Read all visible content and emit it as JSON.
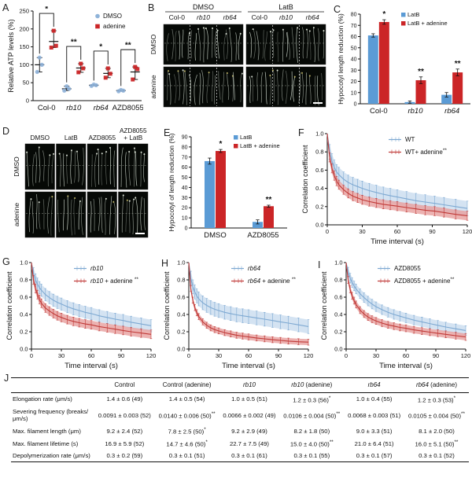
{
  "labels": {
    "A": "A",
    "B": "B",
    "C": "C",
    "D": "D",
    "E": "E",
    "F": "F",
    "G": "G",
    "H": "H",
    "I": "I",
    "J": "J"
  },
  "colors": {
    "blue_marker": "#8fb3d9",
    "blue_bar": "#5b9bd5",
    "red": "#cb2527",
    "blue_line": "#7ea9d2",
    "blue_band": "#c9dcef",
    "red_line": "#c03a38",
    "red_band": "#e79f9e",
    "axis": "#111111"
  },
  "micrographs": {
    "B": {
      "row_labels": [
        "DMSO",
        "adenine"
      ],
      "groups": [
        {
          "title": "DMSO",
          "cols": [
            {
              "t": "Col-0",
              "i": false
            },
            {
              "t": "rb10",
              "i": true
            },
            {
              "t": "rb64",
              "i": true
            }
          ]
        },
        {
          "title": "LatB",
          "cols": [
            {
              "t": "Col-0",
              "i": false
            },
            {
              "t": "rb10",
              "i": true
            },
            {
              "t": "rb64",
              "i": true
            }
          ]
        }
      ]
    },
    "D": {
      "row_labels": [
        "DMSO",
        "adenine"
      ],
      "cols": [
        "DMSO",
        "LatB",
        "AZD8055",
        "AZD8055\n+ LatB"
      ]
    }
  },
  "chart_data": {
    "A": {
      "type": "scatter",
      "ylabel": "Relative ATP levels (%)",
      "ylim": [
        0,
        250
      ],
      "yticks": [
        0,
        50,
        100,
        150,
        200,
        250
      ],
      "categories": [
        {
          "t": "Col-0",
          "i": false
        },
        {
          "t": "rb10",
          "i": true
        },
        {
          "t": "rb64",
          "i": true
        },
        {
          "t": "AZD8055",
          "i": false
        }
      ],
      "legend": [
        {
          "label": "DMSO",
          "marker": "circle",
          "color": "blue_marker"
        },
        {
          "label": "adenine",
          "marker": "square",
          "color": "red"
        }
      ],
      "series": [
        {
          "name": "DMSO",
          "color": "blue_marker",
          "marker": "circle",
          "points": [
            [
              80,
              100,
              120
            ],
            [
              28,
              33,
              40
            ],
            [
              41,
              43,
              45
            ],
            [
              26,
              28,
              30
            ]
          ],
          "mean": [
            100,
            33,
            43,
            28
          ]
        },
        {
          "name": "adenine",
          "color": "red",
          "marker": "square",
          "points": [
            [
              148,
              153,
              195
            ],
            [
              79,
              90,
              103
            ],
            [
              64,
              75,
              90
            ],
            [
              59,
              88,
              94
            ]
          ],
          "mean": [
            165,
            91,
            76,
            80
          ]
        }
      ],
      "sig": [
        "*",
        "**",
        "*",
        "**"
      ]
    },
    "C": {
      "type": "bar",
      "ylabel": "Hypocotyl length reduction (%)",
      "ylim": [
        0,
        80
      ],
      "ytick_step": 10,
      "legend_dx": 90,
      "categories": [
        {
          "t": "Col-0",
          "i": false
        },
        {
          "t": "rb10",
          "i": true
        },
        {
          "t": "rb64",
          "i": true
        }
      ],
      "legend": [
        {
          "label": "LatB",
          "color": "blue_bar"
        },
        {
          "label": "LatB + adenine",
          "color": "red"
        }
      ],
      "series": [
        {
          "name": "LatB",
          "color": "blue_bar",
          "values": [
            61,
            1.5,
            8
          ],
          "err": [
            1.5,
            1,
            2
          ]
        },
        {
          "name": "LatB + adenine",
          "color": "red",
          "values": [
            73,
            21,
            28
          ],
          "err": [
            2,
            3,
            3
          ]
        }
      ],
      "sig": [
        "*",
        "**",
        "**"
      ]
    },
    "E": {
      "type": "bar",
      "ylabel": "Hypocotyl of length reduction (%)",
      "ylim": [
        0,
        90
      ],
      "ytick_step": 10,
      "legend_dx": 70,
      "categories": [
        {
          "t": "DMSO",
          "i": false
        },
        {
          "t": "AZD8055",
          "i": false
        }
      ],
      "legend": [
        {
          "label": "LatB",
          "color": "blue_bar"
        },
        {
          "label": "LatB + adenine",
          "color": "red"
        }
      ],
      "series": [
        {
          "name": "LatB",
          "color": "blue_bar",
          "values": [
            66,
            6
          ],
          "err": [
            3,
            2
          ]
        },
        {
          "name": "LatB + adenine",
          "color": "red",
          "values": [
            76,
            21.5
          ],
          "err": [
            1.5,
            1
          ]
        }
      ],
      "sig": [
        "*",
        "**"
      ]
    },
    "F": {
      "type": "line",
      "xlabel": "Time interval (s)",
      "ylabel": "Correlation coefficient",
      "xlim": [
        0,
        120
      ],
      "xticks": [
        0,
        30,
        60,
        90,
        120
      ],
      "yticks": [
        0,
        0.2,
        0.4,
        0.6,
        0.8,
        1.0
      ],
      "legend_dx": 106,
      "x": [
        0,
        2,
        4,
        6,
        8,
        10,
        14,
        18,
        22,
        26,
        30,
        36,
        42,
        48,
        54,
        60,
        68,
        76,
        84,
        92,
        100,
        110,
        120
      ],
      "legend": [
        {
          "it": "",
          "rest": "WT",
          "sup": ""
        },
        {
          "it": "",
          "rest": "WT+ adenine",
          "sup": "**"
        }
      ],
      "series": [
        {
          "name": "WT",
          "line": "blue_line",
          "band": "blue_band",
          "err": 0.08,
          "y": [
            1.0,
            0.8,
            0.7,
            0.63,
            0.58,
            0.55,
            0.5,
            0.465,
            0.44,
            0.42,
            0.4,
            0.375,
            0.355,
            0.335,
            0.32,
            0.305,
            0.285,
            0.265,
            0.25,
            0.235,
            0.22,
            0.2,
            0.18
          ]
        },
        {
          "name": "WT+ adenine",
          "line": "red_line",
          "band": "red_band",
          "err": 0.05,
          "y": [
            1.0,
            0.74,
            0.62,
            0.54,
            0.48,
            0.44,
            0.385,
            0.345,
            0.315,
            0.295,
            0.275,
            0.255,
            0.24,
            0.225,
            0.215,
            0.205,
            0.19,
            0.175,
            0.16,
            0.15,
            0.135,
            0.115,
            0.1
          ]
        }
      ]
    },
    "G": {
      "type": "line",
      "xlabel": "Time interval (s)",
      "ylabel": "Correlation coefficient",
      "xlim": [
        0,
        120
      ],
      "xticks": [
        0,
        30,
        60,
        90,
        120
      ],
      "yticks": [
        0,
        0.2,
        0.4,
        0.6,
        0.8,
        1.0
      ],
      "legend_dx": 104,
      "x": [
        0,
        2,
        4,
        6,
        8,
        10,
        14,
        18,
        22,
        26,
        30,
        36,
        42,
        48,
        54,
        60,
        68,
        76,
        84,
        92,
        100,
        110,
        120
      ],
      "legend": [
        {
          "it": "rb10",
          "rest": "",
          "sup": ""
        },
        {
          "it": "rb10",
          "rest": " + adenine ",
          "sup": "**"
        }
      ],
      "series": [
        {
          "name": "rb10",
          "line": "blue_line",
          "band": "blue_band",
          "err": 0.07,
          "y": [
            1.0,
            0.87,
            0.8,
            0.75,
            0.71,
            0.68,
            0.63,
            0.595,
            0.565,
            0.54,
            0.52,
            0.49,
            0.465,
            0.445,
            0.425,
            0.41,
            0.385,
            0.365,
            0.345,
            0.33,
            0.31,
            0.29,
            0.27
          ]
        },
        {
          "name": "rb10 + adenine",
          "line": "red_line",
          "band": "red_band",
          "err": 0.05,
          "y": [
            1.0,
            0.8,
            0.7,
            0.63,
            0.575,
            0.53,
            0.475,
            0.44,
            0.41,
            0.385,
            0.365,
            0.34,
            0.32,
            0.305,
            0.29,
            0.28,
            0.26,
            0.245,
            0.23,
            0.215,
            0.2,
            0.185,
            0.17
          ]
        }
      ]
    },
    "H": {
      "type": "line",
      "xlabel": "Time interval (s)",
      "ylabel": "Correlation coefficient",
      "xlim": [
        0,
        120
      ],
      "xticks": [
        0,
        30,
        60,
        90,
        120
      ],
      "yticks": [
        0,
        0.2,
        0.4,
        0.6,
        0.8,
        1.0
      ],
      "legend_dx": 104,
      "x": [
        0,
        2,
        4,
        6,
        8,
        10,
        14,
        18,
        22,
        26,
        30,
        36,
        42,
        48,
        54,
        60,
        68,
        76,
        84,
        92,
        100,
        110,
        120
      ],
      "legend": [
        {
          "it": "rb64",
          "rest": "",
          "sup": ""
        },
        {
          "it": "rb64",
          "rest": " + adenine ",
          "sup": "**"
        }
      ],
      "series": [
        {
          "name": "rb64",
          "line": "blue_line",
          "band": "blue_band",
          "err": 0.08,
          "y": [
            1.0,
            0.82,
            0.72,
            0.66,
            0.615,
            0.58,
            0.535,
            0.505,
            0.48,
            0.46,
            0.445,
            0.425,
            0.41,
            0.395,
            0.385,
            0.375,
            0.36,
            0.345,
            0.33,
            0.315,
            0.3,
            0.28,
            0.26
          ]
        },
        {
          "name": "rb64 + adenine",
          "line": "red_line",
          "band": "red_band",
          "err": 0.035,
          "y": [
            1.0,
            0.7,
            0.565,
            0.48,
            0.42,
            0.375,
            0.315,
            0.275,
            0.245,
            0.225,
            0.21,
            0.19,
            0.175,
            0.16,
            0.15,
            0.14,
            0.128,
            0.118,
            0.108,
            0.1,
            0.092,
            0.085,
            0.08
          ]
        }
      ]
    },
    "I": {
      "type": "line",
      "xlabel": "Time interval (s)",
      "ylabel": "Correlation coefficient",
      "xlim": [
        0,
        120
      ],
      "xticks": [
        0,
        30,
        60,
        90,
        120
      ],
      "yticks": [
        0,
        0.2,
        0.4,
        0.6,
        0.8,
        1.0
      ],
      "legend_dx": 118,
      "x": [
        0,
        2,
        4,
        6,
        8,
        10,
        14,
        18,
        22,
        26,
        30,
        36,
        42,
        48,
        54,
        60,
        68,
        76,
        84,
        92,
        100,
        110,
        120
      ],
      "legend": [
        {
          "it": "",
          "rest": "AZD8055",
          "sup": ""
        },
        {
          "it": "",
          "rest": "AZD8055 + adenine",
          "sup": "**"
        }
      ],
      "series": [
        {
          "name": "AZD8055",
          "line": "blue_line",
          "band": "blue_band",
          "err": 0.055,
          "y": [
            1.0,
            0.89,
            0.82,
            0.77,
            0.73,
            0.695,
            0.64,
            0.595,
            0.555,
            0.52,
            0.49,
            0.455,
            0.425,
            0.4,
            0.38,
            0.36,
            0.335,
            0.315,
            0.295,
            0.275,
            0.255,
            0.235,
            0.215
          ]
        },
        {
          "name": "AZD8055 + adenine",
          "line": "red_line",
          "band": "red_band",
          "err": 0.04,
          "y": [
            1.0,
            0.8,
            0.69,
            0.615,
            0.56,
            0.515,
            0.45,
            0.405,
            0.37,
            0.345,
            0.325,
            0.3,
            0.28,
            0.265,
            0.25,
            0.24,
            0.222,
            0.208,
            0.195,
            0.183,
            0.17,
            0.155,
            0.14
          ]
        }
      ]
    },
    "J": {
      "type": "table",
      "columns": [
        {
          "it": "",
          "rest": "Control"
        },
        {
          "it": "",
          "rest": "Control (adenine)"
        },
        {
          "it": "rb10",
          "rest": ""
        },
        {
          "it": "rb10",
          "rest": " (adenine)"
        },
        {
          "it": "rb64",
          "rest": ""
        },
        {
          "it": "rb64",
          "rest": " (adenine)"
        }
      ],
      "rows": [
        {
          "label": "Elongation rate (μm/s)",
          "cells": [
            {
              "t": "1.4 ± 0.6 (49)",
              "sup": ""
            },
            {
              "t": "1.4 ± 0.5 (54)",
              "sup": ""
            },
            {
              "t": "1.0 ± 0.5 (51)",
              "sup": ""
            },
            {
              "t": "1.2 ± 0.3 (56)",
              "sup": "*"
            },
            {
              "t": "1.0 ± 0.4 (55)",
              "sup": ""
            },
            {
              "t": "1.2 ± 0.3 (53)",
              "sup": "*"
            }
          ]
        },
        {
          "label": "Severing frequency (breaks/μm/s)",
          "cells": [
            {
              "t": "0.0091 ± 0.003 (52)",
              "sup": ""
            },
            {
              "t": "0.0140 ± 0.006 (50)",
              "sup": "**"
            },
            {
              "t": "0.0066 ± 0.002 (49)",
              "sup": ""
            },
            {
              "t": "0.0106 ± 0.004 (50)",
              "sup": "**"
            },
            {
              "t": "0.0068 ± 0.003 (51)",
              "sup": ""
            },
            {
              "t": "0.0105 ± 0.004 (50)",
              "sup": "**"
            }
          ]
        },
        {
          "label": "Max. filament length (μm)",
          "cells": [
            {
              "t": "9.2 ± 2.4 (52)",
              "sup": ""
            },
            {
              "t": "7.8 ± 2.5 (50)",
              "sup": "*"
            },
            {
              "t": "9.2 ± 2.9 (49)",
              "sup": ""
            },
            {
              "t": "8.2 ± 1.8 (50)",
              "sup": ""
            },
            {
              "t": "9.0 ± 3.3 (51)",
              "sup": ""
            },
            {
              "t": "8.1 ± 2.0 (50)",
              "sup": ""
            }
          ]
        },
        {
          "label": "Max. filament lifetime (s)",
          "cells": [
            {
              "t": "16.9 ± 5.9 (52)",
              "sup": ""
            },
            {
              "t": "14.7 ± 4.6 (50)",
              "sup": "*"
            },
            {
              "t": "22.7 ± 7.5 (49)",
              "sup": ""
            },
            {
              "t": "15.0 ± 4.0 (50)",
              "sup": "**"
            },
            {
              "t": "21.0 ± 6.4 (51)",
              "sup": ""
            },
            {
              "t": "16.0 ± 5.1 (50)",
              "sup": "**"
            }
          ]
        },
        {
          "label": "Depolymerization rate (μm/s)",
          "cells": [
            {
              "t": "0.3 ± 0.2 (59)",
              "sup": ""
            },
            {
              "t": "0.3 ± 0.1 (51)",
              "sup": ""
            },
            {
              "t": "0.3 ± 0.1 (61)",
              "sup": ""
            },
            {
              "t": "0.3 ± 0.1 (55)",
              "sup": ""
            },
            {
              "t": "0.3 ± 0.1 (57)",
              "sup": ""
            },
            {
              "t": "0.3 ± 0.1 (52)",
              "sup": ""
            }
          ]
        }
      ]
    }
  }
}
